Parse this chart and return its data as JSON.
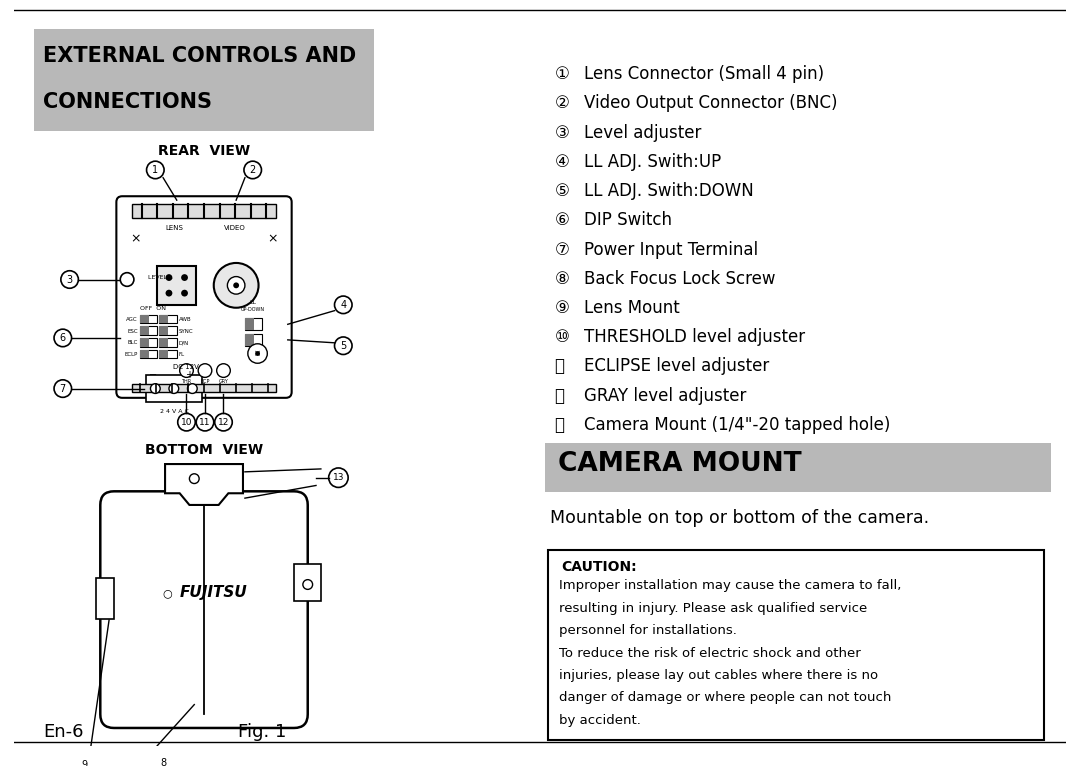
{
  "bg_color": "#ffffff",
  "header_bg": "#b8b8b8",
  "camera_mount_bg": "#b8b8b8",
  "header_text_line1": "EXTERNAL CONTROLS AND",
  "header_text_line2": "CONNECTIONS",
  "camera_mount_title": "CAMERA MOUNT",
  "camera_mount_subtitle": "Mountable on top or bottom of the camera.",
  "caution_title": "CAUTION:",
  "caution_lines": [
    "Improper installation may cause the camera to fall,",
    "resulting in injury. Please ask qualified service",
    "personnel for installations.",
    "To reduce the risk of electric shock and other",
    "injuries, please lay out cables where there is no",
    "danger of damage or where people can not touch",
    "by accident."
  ],
  "rear_view_label": "REAR  VIEW",
  "bottom_view_label": "BOTTOM  VIEW",
  "fig_label": "Fig. 1",
  "page_label": "En-6",
  "items": [
    [
      "①",
      "Lens Connector (Small 4 pin)"
    ],
    [
      "②",
      "Video Output Connector (BNC)"
    ],
    [
      "③",
      "Level adjuster"
    ],
    [
      "④",
      "LL ADJ. Swith:UP"
    ],
    [
      "⑤",
      "LL ADJ. Swith:DOWN"
    ],
    [
      "⑥",
      "DIP Switch"
    ],
    [
      "⑦",
      "Power Input Terminal"
    ],
    [
      "⑧",
      "Back Focus Lock Screw"
    ],
    [
      "⑨",
      "Lens Mount"
    ],
    [
      "⑩",
      "THRESHOLD level adjuster"
    ],
    [
      "⑪",
      "ECLIPSE level adjuster"
    ],
    [
      "⑫",
      "GRAY level adjuster"
    ],
    [
      "⑬",
      "Camera Mount (1/4\"-20 tapped hole)"
    ]
  ]
}
